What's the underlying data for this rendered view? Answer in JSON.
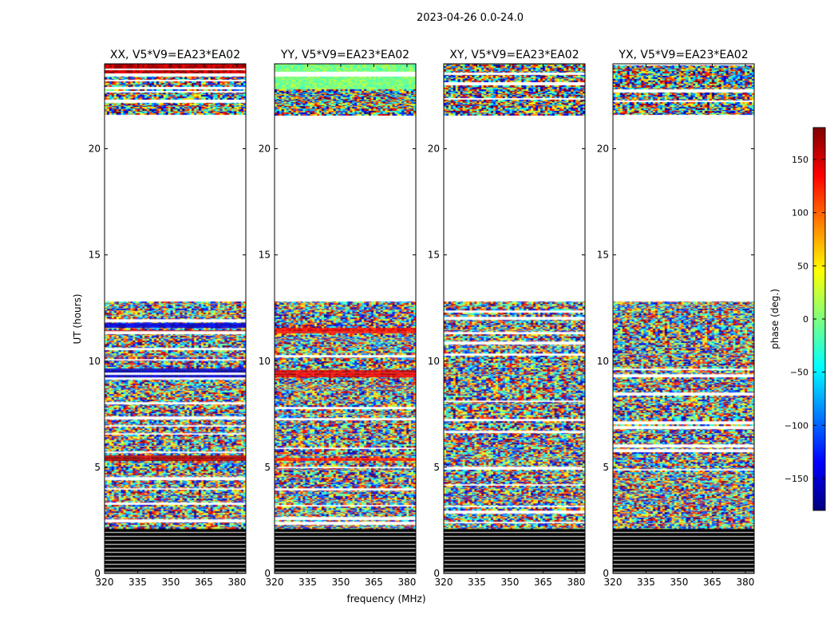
{
  "chart_data": {
    "type": "heatmap",
    "suptitle": "2023-04-26 0.0-24.0",
    "xlabel": "frequency (MHz)",
    "ylabel": "UT (hours)",
    "xlim": [
      320,
      384
    ],
    "ylim": [
      0,
      24
    ],
    "xticks": [
      320,
      335,
      350,
      365,
      380
    ],
    "yticks": [
      0,
      5,
      10,
      15,
      20
    ],
    "colorbar": {
      "label": "phase (deg.)",
      "range": [
        -180,
        180
      ],
      "ticks": [
        -150,
        -100,
        -50,
        0,
        50,
        100,
        150
      ],
      "colormap": "jet",
      "colors": [
        "#00007f",
        "#0000ff",
        "#007fff",
        "#00ffff",
        "#7fff7f",
        "#ffff00",
        "#ff7f00",
        "#ff0000",
        "#7f0000"
      ]
    },
    "data_segments": [
      {
        "ut": [
          0.0,
          2.1
        ],
        "kind": "flagged"
      },
      {
        "ut": [
          2.1,
          12.8
        ],
        "kind": "data"
      },
      {
        "ut": [
          12.8,
          21.6
        ],
        "kind": "empty"
      },
      {
        "ut": [
          21.6,
          24.0
        ],
        "kind": "data"
      }
    ],
    "panels": [
      {
        "title": "XX, V5*V9=EA23*EA02",
        "coherent_bands": [
          [
            5.3,
            5.6,
            170
          ],
          [
            9.3,
            9.7,
            -160
          ],
          [
            11.3,
            11.5,
            160
          ],
          [
            11.6,
            11.8,
            -150
          ],
          [
            23.5,
            24.0,
            160
          ]
        ]
      },
      {
        "title": "YY, V5*V9=EA23*EA02",
        "coherent_bands": [
          [
            5.3,
            5.5,
            130
          ],
          [
            9.3,
            9.6,
            150
          ],
          [
            11.3,
            11.6,
            140
          ],
          [
            22.8,
            24.0,
            0
          ]
        ]
      },
      {
        "title": "XY, V5*V9=EA23*EA02",
        "coherent_bands": []
      },
      {
        "title": "YX, V5*V9=EA23*EA02",
        "coherent_bands": []
      }
    ]
  }
}
